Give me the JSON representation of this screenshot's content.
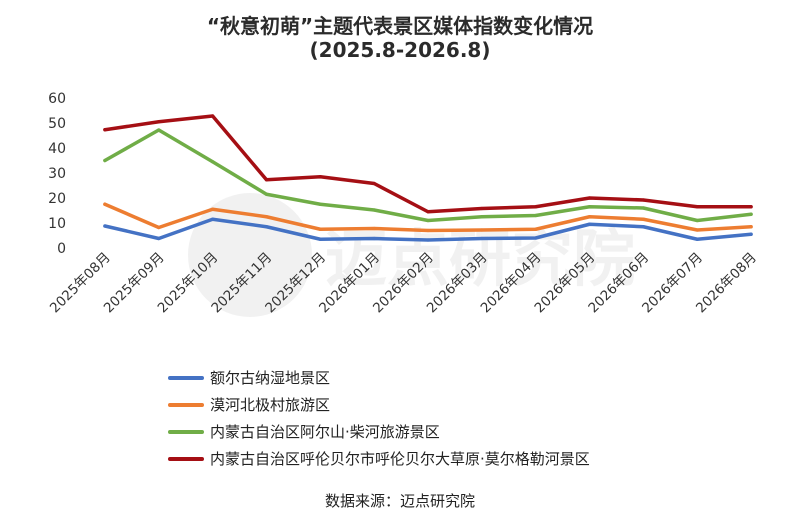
{
  "title_line1": "“秋意初萌”主题代表景区媒体指数变化情况",
  "title_line2": "(2025.8-2026.8)",
  "source": "数据来源：迈点研究院",
  "watermark": "迈点研究院",
  "chart_data": {
    "type": "line",
    "categories": [
      "2025年08月",
      "2025年09月",
      "2025年10月",
      "2025年11月",
      "2025年12月",
      "2026年01月",
      "2026年02月",
      "2026年03月",
      "2026年04月",
      "2026年05月",
      "2026年06月",
      "2026年07月",
      "2026年08月"
    ],
    "yticks": [
      0,
      10,
      20,
      30,
      40,
      50,
      60
    ],
    "ylim": [
      0,
      60
    ],
    "legend_position": "bottom-left",
    "grid": false,
    "series": [
      {
        "name": "额尔古纳湿地景区",
        "color": "#4472c4",
        "values": [
          8.8,
          3.8,
          11.5,
          8.5,
          3.5,
          3.8,
          3.2,
          3.8,
          4.0,
          9.5,
          8.5,
          3.5,
          5.5
        ]
      },
      {
        "name": "漠河北极村旅游区",
        "color": "#ed7d31",
        "values": [
          17.5,
          8.2,
          15.5,
          12.5,
          7.5,
          7.8,
          7.0,
          7.2,
          7.5,
          12.5,
          11.5,
          7.2,
          8.5
        ]
      },
      {
        "name": "内蒙古自治区阿尔山·柴河旅游景区",
        "color": "#70ad47",
        "values": [
          35.0,
          47.2,
          34.5,
          21.5,
          17.5,
          15.2,
          11.0,
          12.5,
          13.0,
          16.5,
          16.0,
          11.0,
          13.5
        ]
      },
      {
        "name": "内蒙古自治区呼伦贝尔市呼伦贝尔大草原·莫尔格勒河景区",
        "color": "#a50f14",
        "values": [
          47.3,
          50.5,
          52.8,
          27.3,
          28.5,
          25.8,
          14.5,
          15.8,
          16.5,
          20.0,
          19.2,
          16.5,
          16.5
        ]
      }
    ]
  }
}
